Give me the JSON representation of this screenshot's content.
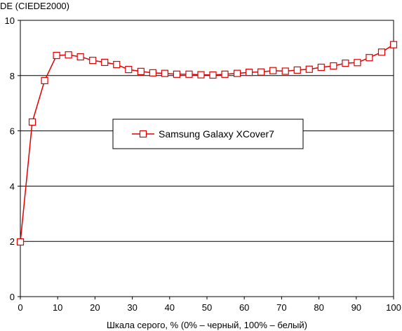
{
  "chart_data": {
    "type": "line",
    "title": "",
    "ylabel": "DE (CIEDE2000)",
    "xlabel": "Шкала серого, % (0% – черный, 100% – белый)",
    "xlim": [
      0,
      100
    ],
    "ylim": [
      0,
      10
    ],
    "x_ticks": [
      0,
      10,
      20,
      30,
      40,
      50,
      60,
      70,
      80,
      90,
      100
    ],
    "y_ticks": [
      0,
      2,
      4,
      6,
      8,
      10
    ],
    "grid": "horizontal",
    "legend_position": "center",
    "series": [
      {
        "name": "Samsung Galaxy XCover7",
        "color": "#e00000",
        "marker": "square",
        "x": [
          0,
          3.2,
          6.5,
          9.7,
          12.9,
          16.1,
          19.4,
          22.6,
          25.8,
          29.0,
          32.3,
          35.5,
          38.7,
          41.9,
          45.2,
          48.4,
          51.6,
          54.8,
          58.1,
          61.3,
          64.5,
          67.7,
          71.0,
          74.2,
          77.4,
          80.6,
          83.9,
          87.1,
          90.3,
          93.5,
          96.8,
          100
        ],
        "y": [
          1.98,
          6.32,
          7.82,
          8.73,
          8.75,
          8.68,
          8.55,
          8.48,
          8.4,
          8.22,
          8.15,
          8.1,
          8.08,
          8.05,
          8.05,
          8.03,
          8.02,
          8.05,
          8.08,
          8.12,
          8.13,
          8.18,
          8.16,
          8.2,
          8.23,
          8.3,
          8.35,
          8.45,
          8.47,
          8.65,
          8.85,
          9.12
        ]
      }
    ]
  }
}
